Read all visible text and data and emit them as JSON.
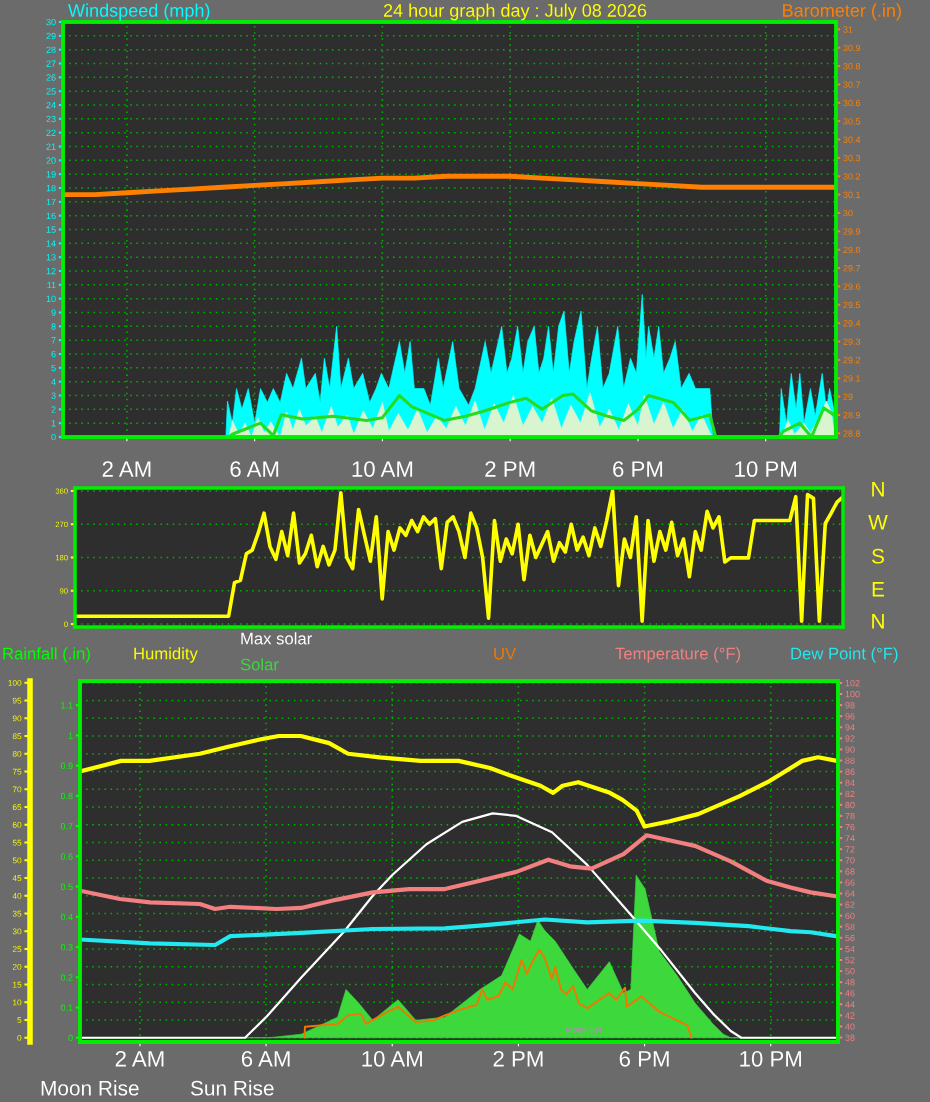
{
  "chart_data": [
    {
      "type": "line",
      "title": "24 hour graph day : July 08 2026",
      "ylabel": "Windspeed (mph)",
      "y2label": "Barometer (.in)",
      "xlim": [
        "2026-07-08T00:00",
        "2026-07-09T00:12"
      ],
      "xticks": [
        {
          "value": "2026-07-08T02:00",
          "label": "2 AM"
        },
        {
          "value": "2026-07-08T06:00",
          "label": "6 AM"
        },
        {
          "value": "2026-07-08T10:00",
          "label": "10 AM"
        },
        {
          "value": "2026-07-08T14:00",
          "label": "2 PM"
        },
        {
          "value": "2026-07-08T18:00",
          "label": "6 PM"
        },
        {
          "value": "2026-07-08T22:00",
          "label": "10 PM"
        }
      ],
      "ylim": [
        0,
        30
      ],
      "yticks": [
        0,
        1,
        2,
        3,
        4,
        5,
        6,
        7,
        8,
        9,
        10,
        11,
        12,
        13,
        14,
        15,
        16,
        17,
        18,
        19,
        20,
        21,
        22,
        23,
        24,
        25,
        26,
        27,
        28,
        29,
        30
      ],
      "y2lim": [
        28.78,
        31.04
      ],
      "y2ticks": [
        28.8,
        28.9,
        29,
        29.1,
        29.2,
        29.3,
        29.4,
        29.5,
        29.6,
        29.7,
        29.8,
        29.9,
        30,
        30.1,
        30.2,
        30.3,
        30.4,
        30.5,
        30.6,
        30.7,
        30.8,
        30.9,
        31
      ],
      "grid": true,
      "series": [
        {
          "type": "area",
          "color": "#00ffff",
          "x": [
            "2026-07-08T00:00",
            "2026-07-08T05:06",
            "2026-07-08T05:09",
            "2026-07-08T05:18",
            "2026-07-08T05:26",
            "2026-07-08T05:36",
            "2026-07-08T05:48",
            "2026-07-08T06:00",
            "2026-07-08T06:11",
            "2026-07-08T06:24",
            "2026-07-08T06:35",
            "2026-07-08T06:48",
            "2026-07-08T07:00",
            "2026-07-08T07:12",
            "2026-07-08T07:28",
            "2026-07-08T07:36",
            "2026-07-08T07:54",
            "2026-07-08T08:03",
            "2026-07-08T08:11",
            "2026-07-08T08:21",
            "2026-07-08T08:34",
            "2026-07-08T08:42",
            "2026-07-08T08:56",
            "2026-07-08T09:06",
            "2026-07-08T09:23",
            "2026-07-08T09:36",
            "2026-07-08T09:48",
            "2026-07-08T09:58",
            "2026-07-08T10:12",
            "2026-07-08T10:32",
            "2026-07-08T10:42",
            "2026-07-08T10:52",
            "2026-07-08T11:00",
            "2026-07-08T11:18",
            "2026-07-08T11:30",
            "2026-07-08T11:45",
            "2026-07-08T11:54",
            "2026-07-08T12:12",
            "2026-07-08T12:24",
            "2026-07-08T12:42",
            "2026-07-08T12:54",
            "2026-07-08T13:13",
            "2026-07-08T13:24",
            "2026-07-08T13:44",
            "2026-07-08T13:54",
            "2026-07-08T14:03",
            "2026-07-08T14:14",
            "2026-07-08T14:24",
            "2026-07-08T14:33",
            "2026-07-08T14:45",
            "2026-07-08T14:54",
            "2026-07-08T15:03",
            "2026-07-08T15:12",
            "2026-07-08T15:21",
            "2026-07-08T15:31",
            "2026-07-08T15:41",
            "2026-07-08T15:51",
            "2026-07-08T16:00",
            "2026-07-08T16:13",
            "2026-07-08T16:24",
            "2026-07-08T16:33",
            "2026-07-08T16:44",
            "2026-07-08T16:54",
            "2026-07-08T17:06",
            "2026-07-08T17:22",
            "2026-07-08T17:33",
            "2026-07-08T17:46",
            "2026-07-08T17:57",
            "2026-07-08T18:08",
            "2026-07-08T18:15",
            "2026-07-08T18:20",
            "2026-07-08T18:30",
            "2026-07-08T18:39",
            "2026-07-08T18:48",
            "2026-07-08T19:00",
            "2026-07-08T19:10",
            "2026-07-08T19:21",
            "2026-07-08T19:36",
            "2026-07-08T19:48",
            "2026-07-08T20:00",
            "2026-07-08T20:15",
            "2026-07-08T20:21",
            "2026-07-08T22:26",
            "2026-07-08T22:29",
            "2026-07-08T22:39",
            "2026-07-08T22:48",
            "2026-07-08T22:57",
            "2026-07-08T23:04",
            "2026-07-08T23:12",
            "2026-07-08T23:24",
            "2026-07-08T23:33",
            "2026-07-08T23:46",
            "2026-07-08T23:54",
            "2026-07-09T00:00",
            "2026-07-09T00:08"
          ],
          "values": [
            0,
            0,
            2.6,
            1.0,
            3.5,
            2.0,
            3.5,
            1.0,
            3.5,
            2.5,
            3.5,
            2.5,
            4.6,
            3.5,
            5.7,
            3.5,
            4.6,
            2.5,
            5.7,
            3.5,
            8.0,
            3.5,
            5.7,
            3.5,
            4.6,
            2.5,
            3.5,
            4.6,
            3.5,
            6.9,
            4.6,
            6.9,
            3.5,
            3.5,
            2.3,
            5.7,
            3.5,
            6.9,
            3.5,
            2.3,
            3.5,
            6.9,
            4.6,
            8.0,
            4.6,
            5.7,
            8.0,
            4.6,
            6.9,
            8.0,
            4.6,
            5.7,
            8.0,
            4.6,
            8.0,
            9.1,
            4.6,
            6.9,
            9.1,
            3.5,
            5.7,
            8.0,
            3.5,
            4.6,
            8.0,
            3.5,
            5.7,
            4.6,
            10.3,
            5.7,
            8.0,
            5.7,
            8.0,
            4.6,
            5.7,
            6.9,
            3.5,
            4.6,
            3.5,
            3.5,
            3.5,
            0,
            0,
            3.5,
            1.0,
            4.6,
            2.0,
            4.6,
            1.0,
            3.5,
            1.5,
            4.6,
            2.0,
            3.5,
            2.0
          ]
        },
        {
          "type": "area",
          "color": "#d8f5d0",
          "x": [
            "2026-07-08T00:00",
            "2026-07-08T05:12",
            "2026-07-08T05:18",
            "2026-07-08T05:30",
            "2026-07-08T05:42",
            "2026-07-08T05:54",
            "2026-07-08T06:06",
            "2026-07-08T06:18",
            "2026-07-08T06:30",
            "2026-07-08T06:48",
            "2026-07-08T07:00",
            "2026-07-08T07:12",
            "2026-07-08T07:24",
            "2026-07-08T07:36",
            "2026-07-08T07:54",
            "2026-07-08T08:06",
            "2026-07-08T08:24",
            "2026-07-08T08:36",
            "2026-07-08T08:54",
            "2026-07-08T09:06",
            "2026-07-08T09:24",
            "2026-07-08T09:42",
            "2026-07-08T10:00",
            "2026-07-08T10:12",
            "2026-07-08T10:30",
            "2026-07-08T10:48",
            "2026-07-08T11:06",
            "2026-07-08T11:24",
            "2026-07-08T11:42",
            "2026-07-08T12:00",
            "2026-07-08T12:18",
            "2026-07-08T12:36",
            "2026-07-08T12:54",
            "2026-07-08T13:12",
            "2026-07-08T13:30",
            "2026-07-08T13:48",
            "2026-07-08T14:06",
            "2026-07-08T14:24",
            "2026-07-08T14:42",
            "2026-07-08T15:00",
            "2026-07-08T15:18",
            "2026-07-08T15:36",
            "2026-07-08T15:54",
            "2026-07-08T16:12",
            "2026-07-08T16:30",
            "2026-07-08T16:48",
            "2026-07-08T17:06",
            "2026-07-08T17:24",
            "2026-07-08T17:42",
            "2026-07-08T18:00",
            "2026-07-08T18:12",
            "2026-07-08T18:30",
            "2026-07-08T18:48",
            "2026-07-08T19:06",
            "2026-07-08T19:24",
            "2026-07-08T19:42",
            "2026-07-08T20:00",
            "2026-07-08T20:15",
            "2026-07-08T20:21",
            "2026-07-08T22:30",
            "2026-07-08T22:42",
            "2026-07-08T22:54",
            "2026-07-08T23:12",
            "2026-07-08T23:24",
            "2026-07-08T23:42",
            "2026-07-08T23:54",
            "2026-07-09T00:03",
            "2026-07-09T00:08"
          ],
          "values": [
            0,
            0,
            1.2,
            0.2,
            1.0,
            0,
            1.4,
            0.3,
            1.1,
            0,
            1.8,
            0.5,
            2.0,
            0.8,
            1.5,
            0.3,
            2.2,
            0.7,
            1.6,
            0.2,
            1.9,
            0.6,
            2.5,
            0.4,
            1.7,
            0.5,
            2.0,
            0.3,
            1.5,
            0.6,
            2.2,
            0.8,
            2.6,
            0.5,
            2.4,
            1.0,
            3.0,
            0.8,
            2.2,
            1.0,
            2.8,
            0.6,
            2.3,
            1.0,
            3.2,
            0.7,
            2.0,
            0.5,
            2.4,
            0.8,
            3.0,
            0.9,
            2.5,
            0.6,
            2.0,
            0.4,
            1.6,
            0.3,
            0,
            0,
            1.2,
            0.2,
            1.0,
            0.3,
            1.5,
            2.6,
            1.8,
            0.5
          ]
        },
        {
          "type": "line",
          "color": "#22dd22",
          "x": [
            "2026-07-08T00:00",
            "2026-07-08T05:12",
            "2026-07-08T05:18",
            "2026-07-08T06:11",
            "2026-07-08T06:35",
            "2026-07-08T06:50",
            "2026-07-08T07:30",
            "2026-07-08T08:29",
            "2026-07-08T09:30",
            "2026-07-08T10:00",
            "2026-07-08T10:32",
            "2026-07-08T10:55",
            "2026-07-08T11:56",
            "2026-07-08T12:36",
            "2026-07-08T13:13",
            "2026-07-08T13:59",
            "2026-07-08T14:30",
            "2026-07-08T15:00",
            "2026-07-08T15:39",
            "2026-07-08T15:58",
            "2026-07-08T16:32",
            "2026-07-08T17:03",
            "2026-07-08T17:34",
            "2026-07-08T18:00",
            "2026-07-08T18:20",
            "2026-07-08T19:06",
            "2026-07-08T19:21",
            "2026-07-08T19:37",
            "2026-07-08T20:15",
            "2026-07-08T20:26",
            "2026-07-08T22:24",
            "2026-07-08T22:33",
            "2026-07-08T23:04",
            "2026-07-08T23:26",
            "2026-07-08T23:49",
            "2026-07-09T00:08"
          ],
          "values": [
            0,
            0,
            0.2,
            1.0,
            0.1,
            1.6,
            1.3,
            1.5,
            1.2,
            1.4,
            3.0,
            2.2,
            1.2,
            1.5,
            1.9,
            2.5,
            2.8,
            2.0,
            3.0,
            3.1,
            1.9,
            1.5,
            1.2,
            2.0,
            3.0,
            2.5,
            1.9,
            1.2,
            1.6,
            0,
            0,
            0.4,
            1.0,
            0,
            2.1,
            1.6
          ]
        },
        {
          "type": "line",
          "color": "#ff8000",
          "axis": "y2",
          "x": [
            "2026-07-08T00:00",
            "2026-07-08T01:00",
            "2026-07-08T02:00",
            "2026-07-08T03:00",
            "2026-07-08T04:00",
            "2026-07-08T05:00",
            "2026-07-08T06:00",
            "2026-07-08T07:00",
            "2026-07-08T08:00",
            "2026-07-08T09:00",
            "2026-07-08T10:00",
            "2026-07-08T11:00",
            "2026-07-08T12:00",
            "2026-07-08T13:00",
            "2026-07-08T14:00",
            "2026-07-08T15:00",
            "2026-07-08T16:00",
            "2026-07-08T17:00",
            "2026-07-08T18:00",
            "2026-07-08T19:00",
            "2026-07-08T20:00",
            "2026-07-08T21:00",
            "2026-07-08T22:00",
            "2026-07-08T23:00",
            "2026-07-09T00:08"
          ],
          "values": [
            30.1,
            30.1,
            30.11,
            30.12,
            30.13,
            30.14,
            30.15,
            30.16,
            30.17,
            30.18,
            30.19,
            30.19,
            30.2,
            30.2,
            30.2,
            30.19,
            30.18,
            30.17,
            30.16,
            30.15,
            30.14,
            30.14,
            30.14,
            30.14,
            30.14
          ]
        }
      ]
    },
    {
      "type": "line",
      "categories": [
        null,
        null,
        null,
        null,
        null,
        null,
        null,
        null,
        null,
        null,
        null,
        null,
        null,
        null,
        null,
        null,
        null,
        null,
        null,
        null,
        null,
        null,
        null,
        null,
        null,
        null,
        null,
        null,
        null,
        null,
        null,
        null,
        null,
        null,
        null,
        null,
        null,
        null,
        null,
        null,
        null,
        null,
        null,
        null,
        null,
        null,
        null,
        null,
        null,
        null,
        null,
        null,
        null,
        null,
        null,
        null,
        null,
        null,
        null,
        null,
        null,
        null,
        null,
        null,
        null,
        null,
        null,
        null,
        null,
        null,
        null,
        null,
        null,
        null,
        null,
        null,
        null,
        null,
        null,
        null,
        null,
        null,
        null,
        null,
        null,
        null,
        null,
        null,
        null,
        null,
        null,
        null,
        null,
        null,
        null,
        null,
        null,
        null,
        null,
        null,
        null,
        null,
        null,
        null,
        null,
        null,
        null,
        null,
        null,
        null,
        null,
        null,
        null,
        null,
        null,
        null,
        null,
        null,
        null,
        null,
        null,
        null,
        null,
        null,
        null,
        null,
        null,
        null,
        null,
        null,
        null
      ],
      "values": [
        21,
        21,
        21,
        21,
        21,
        21,
        21,
        21,
        21,
        21,
        21,
        21,
        21,
        21,
        21,
        21,
        21,
        21,
        21,
        21,
        21,
        21,
        21,
        21,
        21,
        21,
        21,
        112,
        118,
        190,
        200,
        245,
        300,
        210,
        175,
        250,
        185,
        300,
        165,
        190,
        240,
        155,
        210,
        160,
        200,
        355,
        180,
        150,
        310,
        240,
        170,
        290,
        68,
        250,
        200,
        260,
        240,
        280,
        250,
        290,
        270,
        285,
        150,
        275,
        290,
        250,
        180,
        300,
        260,
        180,
        16,
        280,
        170,
        230,
        190,
        270,
        120,
        240,
        180,
        215,
        250,
        170,
        220,
        195,
        270,
        200,
        235,
        185,
        260,
        210,
        280,
        360,
        104,
        230,
        180,
        290,
        8,
        280,
        170,
        250,
        200,
        275,
        185,
        230,
        128,
        250,
        200,
        305,
        260,
        290,
        168,
        179,
        179,
        179,
        179,
        280,
        280,
        280,
        280,
        280,
        280,
        280,
        344,
        8,
        350,
        340,
        8,
        272,
        300,
        330,
        344
      ],
      "color": "#ffff00",
      "ylim": [
        -8,
        368
      ],
      "yticks": [
        0,
        90,
        180,
        270,
        360
      ],
      "grid": "y",
      "annotations": [
        "N",
        "W",
        "S",
        "E",
        "N"
      ]
    },
    {
      "type": "line",
      "ylabel": "Humidity",
      "y2label": "Temperature (°F)",
      "y3label": "Rainfall (.in)",
      "xlim": [
        "2026-07-08T00:06",
        "2026-07-09T00:08"
      ],
      "xticks": [
        {
          "value": "2026-07-08T02:00",
          "label": "2 AM"
        },
        {
          "value": "2026-07-08T06:00",
          "label": "6 AM"
        },
        {
          "value": "2026-07-08T10:00",
          "label": "10 AM"
        },
        {
          "value": "2026-07-08T14:00",
          "label": "2 PM"
        },
        {
          "value": "2026-07-08T18:00",
          "label": "6 PM"
        },
        {
          "value": "2026-07-08T22:00",
          "label": "10 PM"
        }
      ],
      "ylim": [
        -1.2,
        100.5
      ],
      "yticks": [
        0,
        5,
        10,
        15,
        20,
        25,
        30,
        35,
        40,
        45,
        50,
        55,
        60,
        65,
        70,
        75,
        80,
        85,
        90,
        95,
        100
      ],
      "y2lim": [
        37.2,
        102.35
      ],
      "y2ticks": [
        38,
        40,
        42,
        44,
        46,
        48,
        50,
        52,
        54,
        56,
        58,
        60,
        62,
        64,
        66,
        68,
        70,
        72,
        74,
        76,
        78,
        80,
        82,
        84,
        86,
        88,
        90,
        92,
        94,
        96,
        98,
        100,
        102
      ],
      "y3lim": [
        -0.014,
        1.18
      ],
      "y3ticks": [
        0,
        0.1,
        0.2,
        0.3,
        0.4,
        0.5,
        0.6,
        0.7,
        0.8,
        0.9,
        1,
        1.1
      ],
      "grid": true,
      "annotations": [
        "Moon Rise",
        "Sun Rise",
        {
          "text": "Moon Set",
          "x": "2026-07-08T16:04",
          "y": 1
        }
      ],
      "series": [
        {
          "type": "line",
          "color": "#ffff00",
          "x": [
            "2026-07-08T00:06",
            "2026-07-08T01:24",
            "2026-07-08T02:18",
            "2026-07-08T03:54",
            "2026-07-08T04:48",
            "2026-07-08T05:48",
            "2026-07-08T06:24",
            "2026-07-08T07:06",
            "2026-07-08T08:00",
            "2026-07-08T08:36",
            "2026-07-08T09:36",
            "2026-07-08T10:54",
            "2026-07-08T12:06",
            "2026-07-08T13:06",
            "2026-07-08T13:42",
            "2026-07-08T14:42",
            "2026-07-08T15:06",
            "2026-07-08T15:24",
            "2026-07-08T15:54",
            "2026-07-08T16:54",
            "2026-07-08T17:18",
            "2026-07-08T17:45",
            "2026-07-08T18:00",
            "2026-07-08T18:48",
            "2026-07-08T19:42",
            "2026-07-08T21:00",
            "2026-07-08T21:54",
            "2026-07-08T23:00",
            "2026-07-08T23:30",
            "2026-07-09T00:06"
          ],
          "values": [
            75,
            78,
            78,
            80,
            82,
            84,
            85,
            85,
            83,
            80,
            79,
            78,
            78,
            76,
            74,
            71,
            69,
            71,
            72,
            69,
            67,
            64,
            59.5,
            61,
            63,
            68,
            72,
            78,
            79,
            78
          ]
        },
        {
          "type": "area",
          "name": "Solar",
          "color": "#3cd83c",
          "x": [
            "2026-07-08T00:06",
            "2026-07-08T06:06",
            "2026-07-08T06:36",
            "2026-07-08T07:07",
            "2026-07-08T08:16",
            "2026-07-08T08:32",
            "2026-07-08T08:56",
            "2026-07-08T09:23",
            "2026-07-08T10:11",
            "2026-07-08T10:45",
            "2026-07-08T11:40",
            "2026-07-08T12:47",
            "2026-07-08T13:28",
            "2026-07-08T14:02",
            "2026-07-08T14:23",
            "2026-07-08T14:37",
            "2026-07-08T14:50",
            "2026-07-08T15:10",
            "2026-07-08T15:44",
            "2026-07-08T16:11",
            "2026-07-08T16:53",
            "2026-07-08T17:20",
            "2026-07-08T17:34",
            "2026-07-08T17:44",
            "2026-07-08T18:01",
            "2026-07-08T18:28",
            "2026-07-08T19:02",
            "2026-07-08T19:36",
            "2026-07-08T20:10",
            "2026-07-08T20:30",
            "2026-07-08T20:44",
            "2026-07-09T00:04"
          ],
          "values": [
            0,
            0,
            0.5,
            1.0,
            5.8,
            13.6,
            9.8,
            4.9,
            10.7,
            4.9,
            5.8,
            13.6,
            17.5,
            29.2,
            27.2,
            33.1,
            30.2,
            27.2,
            19.5,
            13.6,
            21.4,
            12.6,
            13.6,
            45.8,
            41.9,
            24.3,
            17.5,
            9.8,
            3.9,
            1.0,
            0,
            0
          ]
        },
        {
          "type": "line",
          "name": "Max solar",
          "color": "#ffffff",
          "x": [
            "2026-07-08T00:06",
            "2026-07-08T05:20",
            "2026-07-08T06:00",
            "2026-07-08T07:07",
            "2026-07-08T08:29",
            "2026-07-08T09:23",
            "2026-07-08T10:01",
            "2026-07-08T11:05",
            "2026-07-08T12:13",
            "2026-07-08T13:11",
            "2026-07-08T13:56",
            "2026-07-08T15:04",
            "2026-07-08T16:11",
            "2026-07-08T17:40",
            "2026-07-08T18:28",
            "2026-07-08T19:36",
            "2026-07-08T20:10",
            "2026-07-08T20:44",
            "2026-07-08T21:04",
            "2026-07-09T00:04"
          ],
          "values": [
            0,
            0,
            5.8,
            17,
            30,
            40,
            46,
            54.5,
            60.8,
            63.2,
            62.5,
            57.9,
            48.7,
            33.6,
            25.3,
            12.6,
            6.8,
            1.9,
            0,
            0
          ]
        },
        {
          "type": "line",
          "name": "UV",
          "color": "#f07800",
          "x": [
            "2026-07-08T07:13",
            "2026-07-08T07:14",
            "2026-07-08T08:16",
            "2026-07-08T08:36",
            "2026-07-08T09:00",
            "2026-07-08T09:10",
            "2026-07-08T09:51",
            "2026-07-08T10:11",
            "2026-07-08T10:45",
            "2026-07-08T11:19",
            "2026-07-08T11:40",
            "2026-07-08T12:07",
            "2026-07-08T12:41",
            "2026-07-08T12:51",
            "2026-07-08T13:01",
            "2026-07-08T13:22",
            "2026-07-08T13:35",
            "2026-07-08T13:49",
            "2026-07-08T14:06",
            "2026-07-08T14:16",
            "2026-07-08T14:30",
            "2026-07-08T14:40",
            "2026-07-08T14:50",
            "2026-07-08T15:04",
            "2026-07-08T15:10",
            "2026-07-08T15:21",
            "2026-07-08T15:31",
            "2026-07-08T15:44",
            "2026-07-08T15:55",
            "2026-07-08T16:11",
            "2026-07-08T16:53",
            "2026-07-08T17:06",
            "2026-07-08T17:23",
            "2026-07-08T17:26",
            "2026-07-08T17:54",
            "2026-07-08T18:28",
            "2026-07-08T19:02",
            "2026-07-08T19:22",
            "2026-07-08T19:29"
          ],
          "values": [
            0,
            3.1,
            3.9,
            6.3,
            6.8,
            3.9,
            7.3,
            8.7,
            4.4,
            4.9,
            6.3,
            7.8,
            9.3,
            13.6,
            10.7,
            11.7,
            15.6,
            13.6,
            21.9,
            18,
            22.4,
            24.8,
            22.4,
            16.5,
            19.9,
            13.6,
            12.2,
            14.6,
            9.7,
            8.3,
            12.6,
            10.7,
            14.1,
            8.7,
            11.7,
            7.3,
            4.9,
            3.4,
            0
          ]
        },
        {
          "type": "line",
          "color": "#f28080",
          "axis": "y2",
          "x": [
            "2026-07-08T00:06",
            "2026-07-08T01:22",
            "2026-07-08T02:19",
            "2026-07-08T03:54",
            "2026-07-08T04:23",
            "2026-07-08T04:52",
            "2026-07-08T06:20",
            "2026-07-08T07:07",
            "2026-07-08T08:15",
            "2026-07-08T09:23",
            "2026-07-08T10:32",
            "2026-07-08T11:40",
            "2026-07-08T12:47",
            "2026-07-08T13:56",
            "2026-07-08T14:57",
            "2026-07-08T15:38",
            "2026-07-08T16:19",
            "2026-07-08T17:20",
            "2026-07-08T18:04",
            "2026-07-08T19:02",
            "2026-07-08T19:36",
            "2026-07-08T20:44",
            "2026-07-08T21:52",
            "2026-07-08T22:38",
            "2026-07-08T23:16",
            "2026-07-09T00:04"
          ],
          "values": [
            64.5,
            63,
            62.4,
            62.1,
            61.2,
            61.6,
            61.2,
            61.4,
            62.9,
            64.2,
            64.8,
            64.8,
            66.3,
            67.9,
            70.1,
            68.9,
            68.5,
            71.1,
            74.5,
            73.3,
            72.6,
            69.8,
            66.3,
            65.1,
            64.2,
            63.5
          ]
        },
        {
          "type": "line",
          "name": "Dew Point (°F)",
          "color": "#22e8f0",
          "axis": "y2",
          "x": [
            "2026-07-08T00:06",
            "2026-07-08T02:19",
            "2026-07-08T04:23",
            "2026-07-08T04:52",
            "2026-07-08T07:07",
            "2026-07-08T09:23",
            "2026-07-08T11:40",
            "2026-07-08T12:47",
            "2026-07-08T14:50",
            "2026-07-08T16:11",
            "2026-07-08T17:54",
            "2026-07-08T19:36",
            "2026-07-08T21:18",
            "2026-07-08T22:38",
            "2026-07-08T23:16",
            "2026-07-09T00:04"
          ],
          "values": [
            55.7,
            55.0,
            54.7,
            56.3,
            56.9,
            57.6,
            57.7,
            58.2,
            59.3,
            58.8,
            59.1,
            58.7,
            58.1,
            57.2,
            57.0,
            56.3
          ]
        }
      ]
    }
  ]
}
